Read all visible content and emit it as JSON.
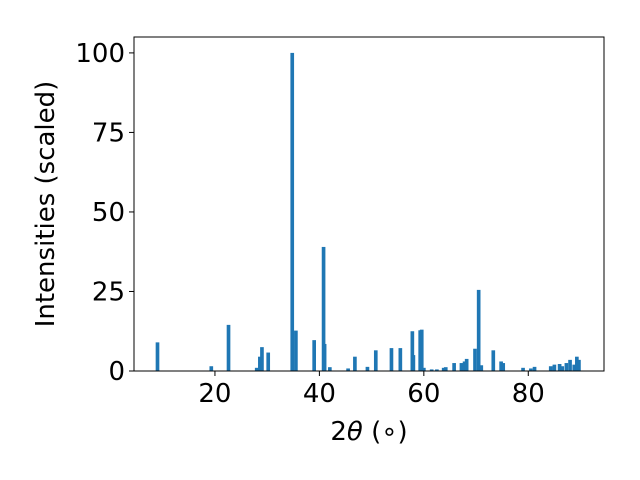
{
  "chart_data": {
    "type": "bar",
    "xlabel_prefix": "2",
    "xlabel_symbol": "θ",
    "xlabel_suffix": " (∘)",
    "ylabel": "Intensities (scaled)",
    "xlim": [
      4.5,
      94.5
    ],
    "ylim": [
      0,
      105
    ],
    "xticks": [
      20,
      40,
      60,
      80
    ],
    "yticks": [
      0,
      25,
      50,
      75,
      100
    ],
    "bar_width": 0.7,
    "bar_color": "#1f77b4",
    "grid": false,
    "x": [
      9.0,
      19.3,
      22.6,
      28.0,
      28.6,
      29.0,
      30.2,
      34.8,
      35.5,
      39.0,
      40.8,
      41.0,
      42.0,
      45.5,
      46.8,
      49.2,
      50.8,
      53.8,
      55.5,
      57.8,
      58.0,
      59.3,
      59.6,
      60.0,
      61.5,
      62.5,
      63.8,
      64.2,
      65.8,
      67.2,
      67.8,
      68.2,
      69.8,
      70.5,
      71.0,
      73.3,
      74.8,
      75.2,
      79.0,
      80.5,
      81.2,
      84.3,
      85.0,
      86.0,
      86.5,
      87.3,
      88.0,
      88.8,
      89.3,
      89.7
    ],
    "values": [
      9,
      1.5,
      14.5,
      1,
      4.5,
      7.5,
      5.8,
      100,
      12.7,
      9.7,
      39,
      8.5,
      1.2,
      0.8,
      4.5,
      1.3,
      6.5,
      7.2,
      7.2,
      12.5,
      5,
      12.8,
      13,
      1,
      0.5,
      0.5,
      1,
      1.2,
      2.5,
      2.5,
      3,
      3.8,
      7,
      25.5,
      1.8,
      6.5,
      3,
      2.5,
      1,
      0.8,
      1.3,
      1.5,
      2,
      2.2,
      1.5,
      2.5,
      3.5,
      2,
      4.5,
      3.5
    ]
  }
}
